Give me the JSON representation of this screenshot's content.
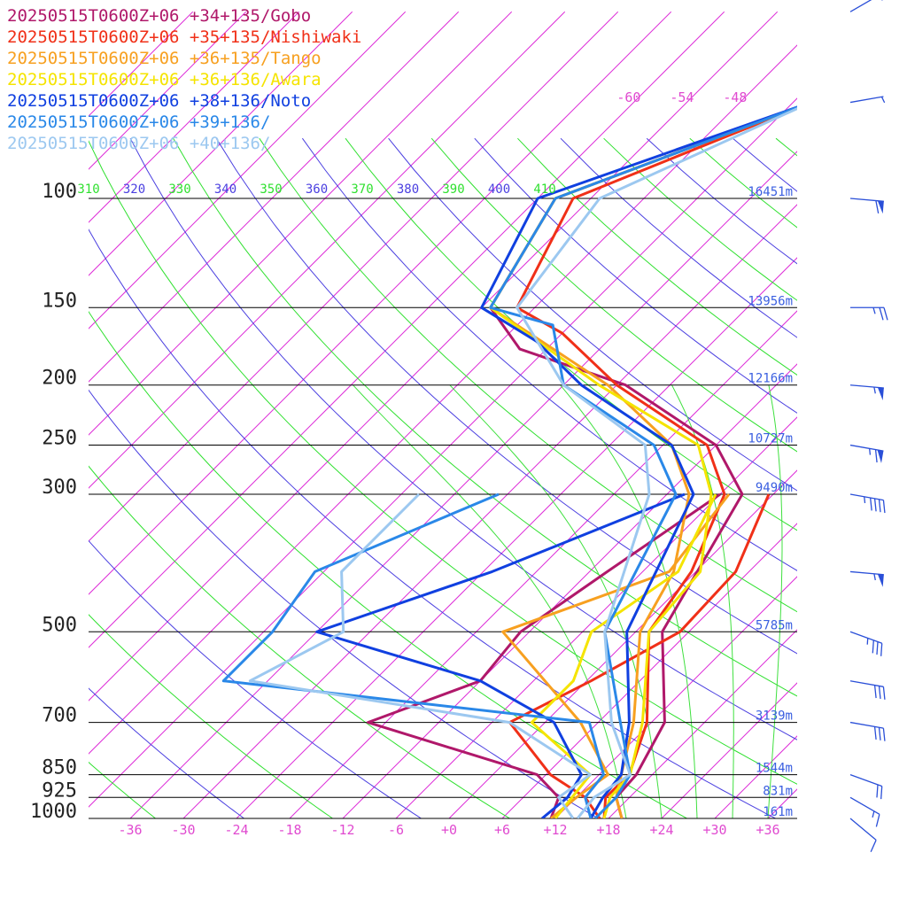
{
  "chart_data": {
    "type": "line",
    "subtype": "skew-T log-P sounding",
    "title": "",
    "xlabel": "",
    "ylabel": "",
    "pressure_levels": [
      1000,
      925,
      850,
      700,
      500,
      300,
      250,
      200,
      150,
      100
    ],
    "pressure_labels": [
      "1000",
      "925",
      "850",
      "700",
      "500",
      "300",
      "250",
      "200",
      "150",
      "100"
    ],
    "heights": [
      {
        "p": 1000,
        "label": "161m"
      },
      {
        "p": 925,
        "label": "831m"
      },
      {
        "p": 850,
        "label": "1544m"
      },
      {
        "p": 700,
        "label": "3139m"
      },
      {
        "p": 500,
        "label": "5785m"
      },
      {
        "p": 300,
        "label": "9490m"
      },
      {
        "p": 250,
        "label": "10727m"
      },
      {
        "p": 200,
        "label": "12166m"
      },
      {
        "p": 150,
        "label": "13956m"
      },
      {
        "p": 100,
        "label": "16451m"
      }
    ],
    "temperature_ticks": [
      {
        "t": -36,
        "label": "-36"
      },
      {
        "t": -30,
        "label": "-30"
      },
      {
        "t": -24,
        "label": "-24"
      },
      {
        "t": -18,
        "label": "-18"
      },
      {
        "t": -12,
        "label": "-12"
      },
      {
        "t": -6,
        "label": "-6"
      },
      {
        "t": 0,
        "label": "+0"
      },
      {
        "t": 6,
        "label": "+6"
      },
      {
        "t": 12,
        "label": "+12"
      },
      {
        "t": 18,
        "label": "+18"
      },
      {
        "t": 24,
        "label": "+24"
      },
      {
        "t": 30,
        "label": "+30"
      },
      {
        "t": 36,
        "label": "+36"
      }
    ],
    "upper_temperature_ticks": [
      {
        "t": -60,
        "label": "-60"
      },
      {
        "t": -54,
        "label": "-54"
      },
      {
        "t": -48,
        "label": "-48"
      }
    ],
    "theta_ticks": [
      {
        "label": "310"
      },
      {
        "label": "320"
      },
      {
        "label": "330"
      },
      {
        "label": "340"
      },
      {
        "label": "350"
      },
      {
        "label": "360"
      },
      {
        "label": "370"
      },
      {
        "label": "380"
      },
      {
        "label": "390"
      },
      {
        "label": "400"
      },
      {
        "label": "410"
      }
    ],
    "xlim": [
      -40,
      40
    ],
    "ylim": [
      1000,
      100
    ],
    "colors": {
      "isobar": "#000000",
      "isotherm": "#dd2ed8",
      "dry_adiabat_a": "#4a3fe0",
      "dry_adiabat_b": "#2fe02f",
      "moist_adiabat": "#3fe03f",
      "wind_barb": "#2a4fd8"
    },
    "series": [
      {
        "name": "20250515T0600Z+06 +34+135/Gobo",
        "color": "#b0186a",
        "temperature": [
          [
            1000,
            19.5
          ],
          [
            925,
            16.5
          ],
          [
            850,
            16.2
          ],
          [
            700,
            13.5
          ],
          [
            500,
            3.0
          ],
          [
            300,
            -3.5
          ],
          [
            250,
            -12
          ],
          [
            200,
            -29
          ],
          [
            175,
            -45
          ],
          [
            150,
            -53
          ],
          [
            100,
            -58
          ],
          [
            70,
            -40
          ],
          [
            60,
            -29
          ]
        ],
        "dewpoint": [
          [
            1000,
            11.5
          ],
          [
            925,
            10.0
          ],
          [
            850,
            5.0
          ],
          [
            700,
            -20
          ],
          [
            600,
            -12
          ],
          [
            500,
            -13
          ],
          [
            400,
            -10
          ],
          [
            300,
            -6.0
          ]
        ]
      },
      {
        "name": "20250515T0600Z+06 +35+135/Nishiwaki",
        "color": "#f03018",
        "temperature": [
          [
            1000,
            17.5
          ],
          [
            925,
            15.3
          ],
          [
            850,
            15.4
          ],
          [
            700,
            11.5
          ],
          [
            500,
            1.5
          ],
          [
            400,
            -0.5
          ],
          [
            300,
            -5.5
          ],
          [
            250,
            -13
          ],
          [
            200,
            -30
          ],
          [
            165,
            -42
          ],
          [
            150,
            -50
          ],
          [
            100,
            -56
          ],
          [
            70,
            -40
          ],
          [
            60,
            -29
          ]
        ],
        "dewpoint": [
          [
            1000,
            17.0
          ],
          [
            925,
            13.0
          ],
          [
            850,
            6.5
          ],
          [
            700,
            -4.0
          ],
          [
            600,
            0.5
          ],
          [
            500,
            5.0
          ],
          [
            400,
            4.5
          ],
          [
            300,
            -0.5
          ]
        ]
      },
      {
        "name": "20250515T0600Z+06 +36+135/Tango",
        "color": "#f7a020",
        "temperature": [
          [
            1000,
            19.5
          ],
          [
            925,
            16.5
          ],
          [
            850,
            14.5
          ],
          [
            700,
            10.0
          ],
          [
            500,
            0.5
          ],
          [
            400,
            -2.5
          ],
          [
            300,
            -9.5
          ],
          [
            250,
            -17
          ],
          [
            200,
            -31
          ],
          [
            150,
            -53
          ],
          [
            100,
            -58
          ],
          [
            70,
            -40
          ],
          [
            60,
            -29
          ]
        ],
        "dewpoint": [
          [
            1000,
            11.5
          ],
          [
            925,
            12.0
          ],
          [
            850,
            13.0
          ],
          [
            700,
            4.0
          ],
          [
            500,
            -15
          ],
          [
            400,
            -3.0
          ],
          [
            300,
            -5.0
          ]
        ]
      },
      {
        "name": "20250515T0600Z+06 +36+136/Awara",
        "color": "#f5e400",
        "temperature": [
          [
            1000,
            17.5
          ],
          [
            925,
            15.8
          ],
          [
            850,
            15.5
          ],
          [
            700,
            11.0
          ],
          [
            500,
            1.5
          ],
          [
            400,
            0.5
          ],
          [
            300,
            -7.0
          ],
          [
            250,
            -14
          ],
          [
            200,
            -32
          ],
          [
            150,
            -53
          ],
          [
            100,
            -58
          ],
          [
            70,
            -40
          ],
          [
            60,
            -29
          ]
        ],
        "dewpoint": [
          [
            1000,
            12.0
          ],
          [
            925,
            11.5
          ],
          [
            850,
            11.0
          ],
          [
            700,
            -1.5
          ],
          [
            600,
            -1.5
          ],
          [
            500,
            -5.0
          ],
          [
            400,
            -2.0
          ],
          [
            300,
            -6.5
          ]
        ]
      },
      {
        "name": "20250515T0600Z+06 +38+136/Noto",
        "color": "#1040e0",
        "temperature": [
          [
            1000,
            16.0
          ],
          [
            925,
            15.0
          ],
          [
            850,
            14.5
          ],
          [
            700,
            9.5
          ],
          [
            500,
            -1.0
          ],
          [
            300,
            -9.0
          ],
          [
            250,
            -17
          ],
          [
            200,
            -34
          ],
          [
            170,
            -44
          ],
          [
            150,
            -54
          ],
          [
            100,
            -60
          ],
          [
            70,
            -40
          ],
          [
            60,
            -29
          ]
        ],
        "dewpoint": [
          [
            1000,
            10.5
          ],
          [
            925,
            11.0
          ],
          [
            850,
            10.0
          ],
          [
            700,
            1.0
          ],
          [
            600,
            -12
          ],
          [
            500,
            -36
          ],
          [
            400,
            -23
          ],
          [
            300,
            -10.0
          ]
        ]
      },
      {
        "name": "20250515T0600Z+06 +39+136/",
        "color": "#2a88e8",
        "temperature": [
          [
            1000,
            16.5
          ],
          [
            925,
            16.5
          ],
          [
            850,
            15.5
          ],
          [
            700,
            8.5
          ],
          [
            500,
            -3.5
          ],
          [
            300,
            -11
          ],
          [
            250,
            -19
          ],
          [
            200,
            -36
          ],
          [
            160,
            -44
          ],
          [
            150,
            -53
          ],
          [
            100,
            -58
          ],
          [
            70,
            -40
          ],
          [
            60,
            -29
          ]
        ],
        "dewpoint": [
          [
            1000,
            16.0
          ],
          [
            925,
            13.0
          ],
          [
            850,
            12.5
          ],
          [
            700,
            5.0
          ],
          [
            600,
            -41
          ],
          [
            500,
            -41
          ],
          [
            400,
            -43
          ],
          [
            300,
            -31
          ]
        ]
      },
      {
        "name": "20250515T0600Z+06 +40+136/",
        "color": "#9cc8f0",
        "temperature": [
          [
            1000,
            14.5
          ],
          [
            925,
            14.0
          ],
          [
            850,
            15.5
          ],
          [
            700,
            7.5
          ],
          [
            500,
            -3.5
          ],
          [
            300,
            -14
          ],
          [
            250,
            -20
          ],
          [
            200,
            -36
          ],
          [
            150,
            -50
          ],
          [
            100,
            -53
          ],
          [
            70,
            -40
          ],
          [
            60,
            -29
          ]
        ],
        "dewpoint": [
          [
            1000,
            14.0
          ],
          [
            925,
            10.0
          ],
          [
            850,
            11.0
          ],
          [
            700,
            -4.0
          ],
          [
            600,
            -38
          ],
          [
            500,
            -33
          ],
          [
            400,
            -40
          ],
          [
            300,
            -40
          ]
        ]
      }
    ],
    "wind_barbs": [
      {
        "p": 1000,
        "dir": 230,
        "speed": 10
      },
      {
        "p": 925,
        "dir": 240,
        "speed": 15
      },
      {
        "p": 850,
        "dir": 250,
        "speed": 20
      },
      {
        "p": 700,
        "dir": 260,
        "speed": 30
      },
      {
        "p": 600,
        "dir": 260,
        "speed": 30
      },
      {
        "p": 500,
        "dir": 250,
        "speed": 35
      },
      {
        "p": 400,
        "dir": 265,
        "speed": 55
      },
      {
        "p": 300,
        "dir": 260,
        "speed": 45
      },
      {
        "p": 250,
        "dir": 260,
        "speed": 65
      },
      {
        "p": 200,
        "dir": 265,
        "speed": 55
      },
      {
        "p": 150,
        "dir": 270,
        "speed": 25
      },
      {
        "p": 100,
        "dir": 265,
        "speed": 60
      },
      {
        "p": 70,
        "dir": 280,
        "speed": 5
      },
      {
        "p": 50,
        "dir": 300,
        "speed": 5
      }
    ]
  }
}
